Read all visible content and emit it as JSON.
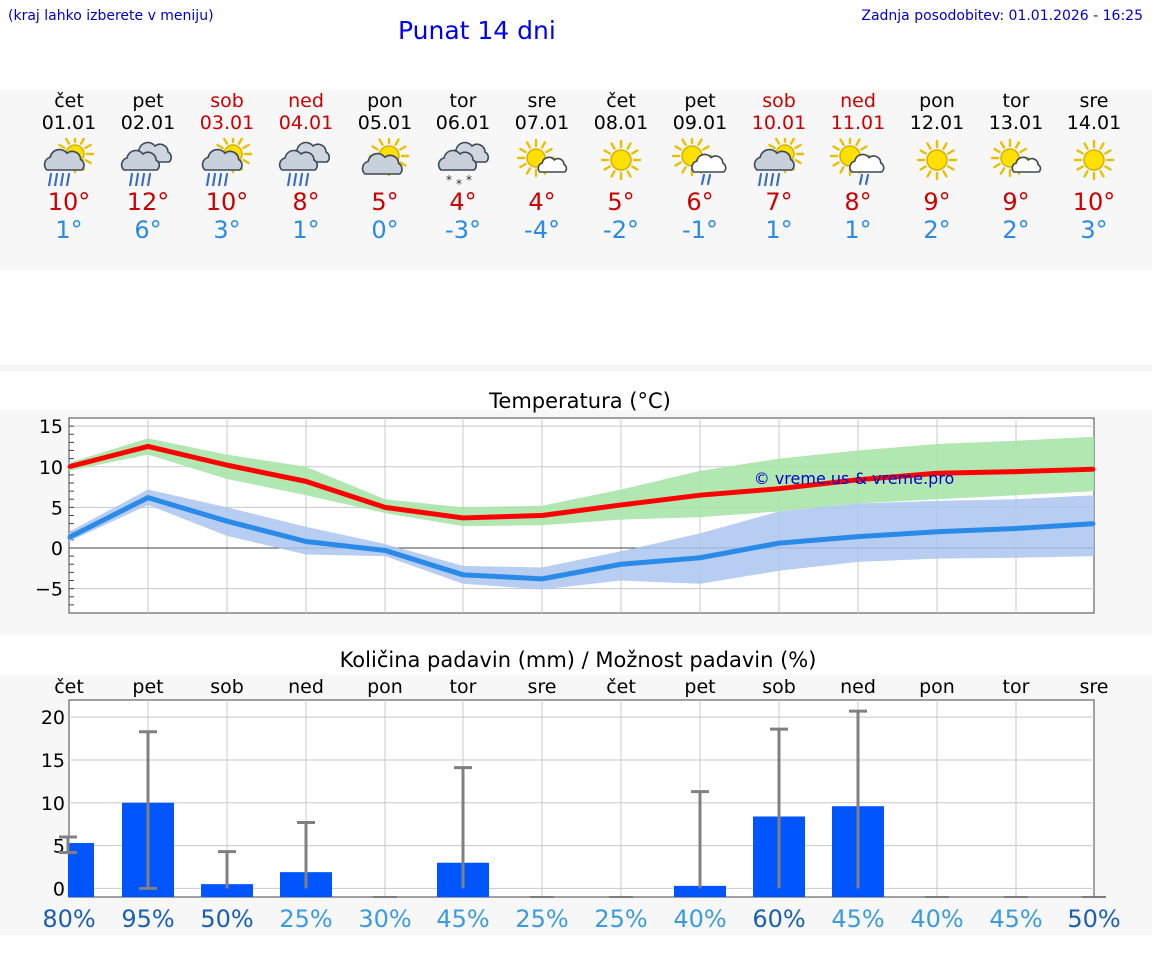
{
  "header": {
    "location_hint": "(kraj lahko izberete v meniju)",
    "title": "Punat 14 dni",
    "updated": "Zadnja posodobitev: 01.01.2026 - 16:25"
  },
  "days": [
    {
      "name": "čet",
      "date": "01.01",
      "weekend": false,
      "icon": "sun-cloud-rain-icon",
      "tmax": "10°",
      "tmin": "1°"
    },
    {
      "name": "pet",
      "date": "02.01",
      "weekend": false,
      "icon": "cloud-rain-icon",
      "tmax": "12°",
      "tmin": "6°"
    },
    {
      "name": "sob",
      "date": "03.01",
      "weekend": true,
      "icon": "sun-cloud-rain-icon",
      "tmax": "10°",
      "tmin": "3°"
    },
    {
      "name": "ned",
      "date": "04.01",
      "weekend": true,
      "icon": "cloud-rain-icon",
      "tmax": "8°",
      "tmin": "1°"
    },
    {
      "name": "pon",
      "date": "05.01",
      "weekend": false,
      "icon": "sun-cloud-icon",
      "tmax": "5°",
      "tmin": "0°"
    },
    {
      "name": "tor",
      "date": "06.01",
      "weekend": false,
      "icon": "cloud-snow-icon",
      "tmax": "4°",
      "tmin": "-3°"
    },
    {
      "name": "sre",
      "date": "07.01",
      "weekend": false,
      "icon": "sun-small-cloud-icon",
      "tmax": "4°",
      "tmin": "-4°"
    },
    {
      "name": "čet",
      "date": "08.01",
      "weekend": false,
      "icon": "sun-icon",
      "tmax": "5°",
      "tmin": "-2°"
    },
    {
      "name": "pet",
      "date": "09.01",
      "weekend": false,
      "icon": "sun-cloud-light-rain-icon",
      "tmax": "6°",
      "tmin": "-1°"
    },
    {
      "name": "sob",
      "date": "10.01",
      "weekend": true,
      "icon": "sun-cloud-rain-icon",
      "tmax": "7°",
      "tmin": "1°"
    },
    {
      "name": "ned",
      "date": "11.01",
      "weekend": true,
      "icon": "sun-cloud-light-rain-icon",
      "tmax": "8°",
      "tmin": "1°"
    },
    {
      "name": "pon",
      "date": "12.01",
      "weekend": false,
      "icon": "sun-icon",
      "tmax": "9°",
      "tmin": "2°"
    },
    {
      "name": "tor",
      "date": "13.01",
      "weekend": false,
      "icon": "sun-small-cloud-icon",
      "tmax": "9°",
      "tmin": "2°"
    },
    {
      "name": "sre",
      "date": "14.01",
      "weekend": false,
      "icon": "sun-icon",
      "tmax": "10°",
      "tmin": "3°"
    }
  ],
  "colors": {
    "max": "#ff0000",
    "min": "#2a8ae8",
    "max_band": "#a8e4a8",
    "min_band": "#aac4f0",
    "bar": "#0055ff",
    "weekend": "#cc0000"
  },
  "chart_data": [
    {
      "type": "line",
      "title": "Temperatura (°C)",
      "watermark": "© vreme.us & vreme.pro",
      "ylim": [
        -8,
        16
      ],
      "yticks": [
        15,
        10,
        5,
        0,
        -5
      ],
      "ytick_labels": [
        "15",
        "10",
        "5",
        "0",
        "−5"
      ],
      "x": [
        0,
        1,
        2,
        3,
        4,
        5,
        6,
        7,
        8,
        9,
        10,
        11,
        12,
        13
      ],
      "series": [
        {
          "name": "max",
          "values": [
            10,
            12.5,
            10.2,
            8.2,
            5,
            3.7,
            4,
            5.3,
            6.5,
            7.3,
            8.4,
            9.2,
            9.4,
            9.7
          ],
          "band_low": [
            9.5,
            11.5,
            8.5,
            6.5,
            4.3,
            2.7,
            2.8,
            3.5,
            3.8,
            4.5,
            5.5,
            6,
            6.5,
            7
          ],
          "band_high": [
            10.5,
            13.5,
            11.5,
            10,
            6,
            5,
            5.2,
            7.2,
            9.5,
            11,
            12,
            12.8,
            13.2,
            13.7
          ]
        },
        {
          "name": "min",
          "values": [
            1.3,
            6.2,
            3.3,
            0.8,
            -0.3,
            -3.3,
            -3.8,
            -2,
            -1.2,
            0.6,
            1.4,
            2,
            2.4,
            3
          ],
          "band_low": [
            0.8,
            5.3,
            1.5,
            -0.8,
            -1,
            -4.4,
            -5.1,
            -4,
            -4.4,
            -2.8,
            -1.7,
            -1.3,
            -1.2,
            -1
          ],
          "band_high": [
            2,
            7.2,
            5,
            2.6,
            0.5,
            -2.2,
            -2.4,
            -0.4,
            1.8,
            4.5,
            5.5,
            5.8,
            6,
            6.5
          ]
        }
      ]
    },
    {
      "type": "bar",
      "title": "Količina padavin (mm) / Možnost padavin (%)",
      "categories": [
        "čet",
        "pet",
        "sob",
        "ned",
        "pon",
        "tor",
        "sre",
        "čet",
        "pet",
        "sob",
        "ned",
        "pon",
        "tor",
        "sre"
      ],
      "values": [
        5.3,
        10,
        0.5,
        1.9,
        0,
        3,
        0,
        0,
        0.3,
        8.4,
        9.6,
        0,
        0,
        0
      ],
      "err_low": [
        4.2,
        0,
        0,
        0,
        0,
        0,
        0,
        0,
        0,
        0,
        0,
        0,
        0,
        0
      ],
      "err_high": [
        6,
        18.3,
        4.3,
        7.7,
        0,
        14.1,
        0,
        0,
        11.3,
        18.6,
        20.7,
        0,
        0,
        0
      ],
      "probability": [
        "80%",
        "95%",
        "50%",
        "25%",
        "30%",
        "45%",
        "25%",
        "25%",
        "40%",
        "60%",
        "45%",
        "40%",
        "45%",
        "50%"
      ],
      "prob_dark": [
        true,
        true,
        true,
        false,
        false,
        false,
        false,
        false,
        false,
        true,
        false,
        false,
        false,
        true
      ],
      "ylim": [
        -1,
        22
      ],
      "yticks": [
        20,
        15,
        10,
        5,
        0
      ],
      "ytick_labels": [
        "20",
        "15",
        "10",
        "5",
        "0"
      ]
    }
  ]
}
